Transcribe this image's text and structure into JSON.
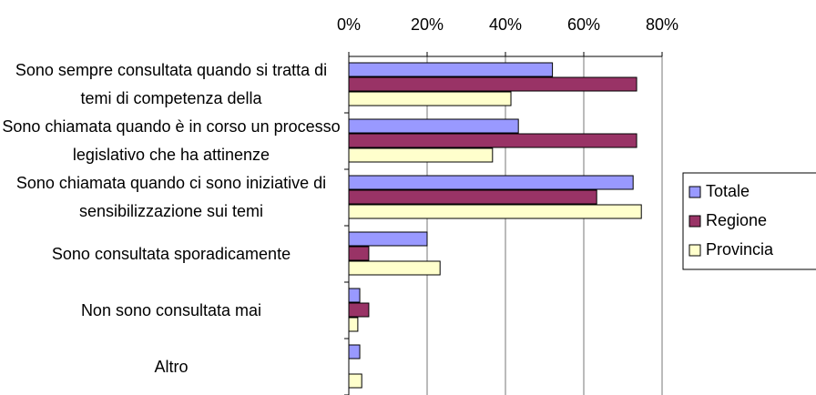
{
  "chart_data": {
    "type": "bar",
    "orientation": "horizontal",
    "categories": [
      "Sono sempre consultata quando si tratta di temi di competenza della",
      "Sono chiamata quando è in corso un processo legislativo che ha attinenze",
      "Sono chiamata quando ci sono iniziative di sensibilizzazione sui temi",
      "Sono consultata sporadicamente",
      "Non sono consultata mai",
      "Altro"
    ],
    "series": [
      {
        "name": "Totale",
        "color": "#9999ff",
        "values": [
          52,
          43.3,
          72.6,
          20,
          2.8,
          2.8
        ]
      },
      {
        "name": "Regione",
        "color": "#993366",
        "values": [
          73.5,
          73.5,
          63.3,
          5.1,
          5.1,
          0
        ]
      },
      {
        "name": "Provincia",
        "color": "#ffffcc",
        "values": [
          41.4,
          36.7,
          74.7,
          23.3,
          2.3,
          3.3
        ]
      }
    ],
    "xlim": [
      0,
      80
    ],
    "xticks": [
      {
        "value": 0,
        "label": "0%"
      },
      {
        "value": 20,
        "label": "20%"
      },
      {
        "value": 40,
        "label": "40%"
      },
      {
        "value": 60,
        "label": "60%"
      },
      {
        "value": 80,
        "label": "80%"
      }
    ],
    "grid": true,
    "legend": "right"
  }
}
